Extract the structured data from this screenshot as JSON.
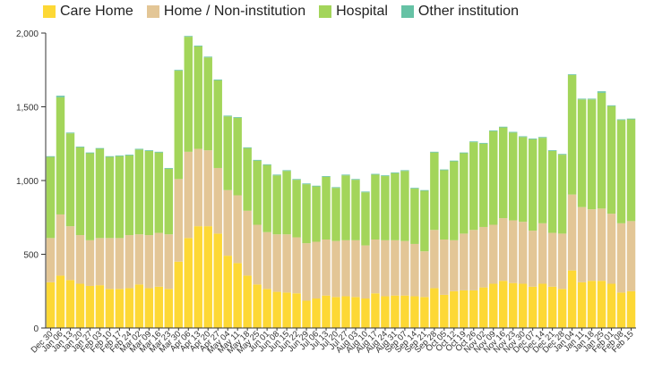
{
  "chart_data": {
    "type": "bar",
    "stacked": true,
    "title": "",
    "xlabel": "",
    "ylabel": "",
    "ylim": [
      0,
      2000
    ],
    "yticks": [
      0,
      500,
      1000,
      1500,
      2000
    ],
    "ytick_labels": [
      "0",
      "500",
      "1,000",
      "1,500",
      "2,000"
    ],
    "grid": false,
    "legend_position": "top-left",
    "categories": [
      "Dec 30",
      "Jan 06",
      "Jan 13",
      "Jan 20",
      "Jan 27",
      "Feb 03",
      "Feb 10",
      "Feb 17",
      "Feb 24",
      "Mar 02",
      "Mar 09",
      "Mar 16",
      "Mar 23",
      "Mar 30",
      "Apr 06",
      "Apr 13",
      "Apr 20",
      "Apr 27",
      "May 04",
      "May 11",
      "May 18",
      "May 25",
      "Jun 01",
      "Jun 08",
      "Jun 15",
      "Jun 22",
      "Jun 29",
      "Jul 06",
      "Jul 13",
      "Jul 20",
      "Jul 27",
      "Aug 03",
      "Aug 10",
      "Aug 17",
      "Aug 24",
      "Aug 31",
      "Sep 07",
      "Sep 14",
      "Sep 21",
      "Sep 28",
      "Oct 05",
      "Oct 12",
      "Oct 19",
      "Oct 26",
      "Nov 02",
      "Nov 09",
      "Nov 16",
      "Nov 23",
      "Nov 30",
      "Dec 07",
      "Dec 14",
      "Dec 21",
      "Dec 28",
      "Jan 04",
      "Jan 11",
      "Jan 18",
      "Jan 25",
      "Feb 01",
      "Feb 08",
      "Feb 15"
    ],
    "x_tick_labels": [
      "Dec 30",
      "Jan 06",
      "Jan 13",
      "Jan 20",
      "Jan 27",
      "Feb 03",
      "Feb 10",
      "Feb 17",
      "Feb 24",
      "Mar 02",
      "Mar 09",
      "Mar 16",
      "Mar 23",
      "Mar 30",
      "Apr 06",
      "Apr 13",
      "Apr 20",
      "Apr 27",
      "May 04",
      "May 11",
      "May 18",
      "May 25",
      "Jun 01",
      "Jun 08",
      "Jun 15",
      "Jun 22",
      "Jun 29",
      "Jul 06",
      "Jul 13",
      "Jul 20",
      "Jul 27",
      "Aug 03",
      "Aug 10",
      "Aug 17",
      "Aug 24",
      "Aug 31",
      "Sep 07",
      "Sep 14",
      "Sep 21",
      "Sep 28",
      "Oct 05",
      "Oct 12",
      "Oct 19",
      "Oct 26",
      "Nov 02",
      "Nov 09",
      "Nov 16",
      "Nov 23",
      "Nov 30",
      "Dec 07",
      "Dec 14",
      "Dec 21",
      "Dec 28",
      "Jan 04",
      "Jan 11",
      "Jan 18",
      "Jan 25",
      "Feb 01",
      "Feb 08",
      "Feb 15"
    ],
    "series": [
      {
        "name": "Care Home",
        "color": "#fdd835",
        "values": [
          310,
          355,
          325,
          300,
          285,
          290,
          265,
          265,
          270,
          295,
          270,
          280,
          265,
          450,
          610,
          690,
          690,
          640,
          490,
          440,
          355,
          295,
          265,
          245,
          240,
          235,
          185,
          200,
          220,
          210,
          215,
          210,
          200,
          235,
          215,
          220,
          220,
          215,
          210,
          270,
          225,
          250,
          255,
          255,
          275,
          300,
          320,
          305,
          300,
          280,
          300,
          280,
          265,
          390,
          310,
          320,
          320,
          300,
          240,
          250
        ]
      },
      {
        "name": "Home / Non-institution",
        "color": "#e3c696",
        "values": [
          300,
          415,
          365,
          330,
          310,
          320,
          345,
          345,
          360,
          340,
          360,
          365,
          370,
          560,
          585,
          525,
          515,
          445,
          445,
          460,
          440,
          405,
          385,
          390,
          395,
          380,
          390,
          385,
          380,
          380,
          380,
          385,
          360,
          365,
          380,
          375,
          370,
          355,
          310,
          395,
          375,
          345,
          385,
          410,
          410,
          400,
          425,
          425,
          420,
          380,
          410,
          365,
          375,
          515,
          510,
          485,
          490,
          475,
          470,
          475
        ]
      },
      {
        "name": "Hospital",
        "color": "#a3d55a",
        "values": [
          550,
          795,
          630,
          595,
          590,
          605,
          550,
          555,
          540,
          575,
          570,
          545,
          445,
          735,
          780,
          695,
          630,
          595,
          500,
          525,
          425,
          435,
          455,
          400,
          430,
          390,
          400,
          375,
          425,
          360,
          440,
          410,
          360,
          440,
          435,
          455,
          475,
          375,
          410,
          525,
          470,
          535,
          545,
          595,
          565,
          635,
          615,
          595,
          575,
          620,
          580,
          555,
          535,
          810,
          730,
          745,
          785,
          730,
          700,
          690
        ]
      },
      {
        "name": "Other institution",
        "color": "#66c2a5",
        "values": [
          5,
          10,
          5,
          5,
          5,
          5,
          5,
          5,
          5,
          5,
          5,
          5,
          5,
          5,
          5,
          5,
          5,
          5,
          5,
          5,
          5,
          5,
          5,
          5,
          5,
          5,
          5,
          5,
          5,
          5,
          5,
          5,
          5,
          5,
          5,
          5,
          5,
          5,
          5,
          5,
          5,
          5,
          5,
          5,
          5,
          5,
          5,
          5,
          5,
          5,
          5,
          5,
          5,
          5,
          5,
          5,
          10,
          5,
          5,
          5
        ]
      }
    ]
  }
}
